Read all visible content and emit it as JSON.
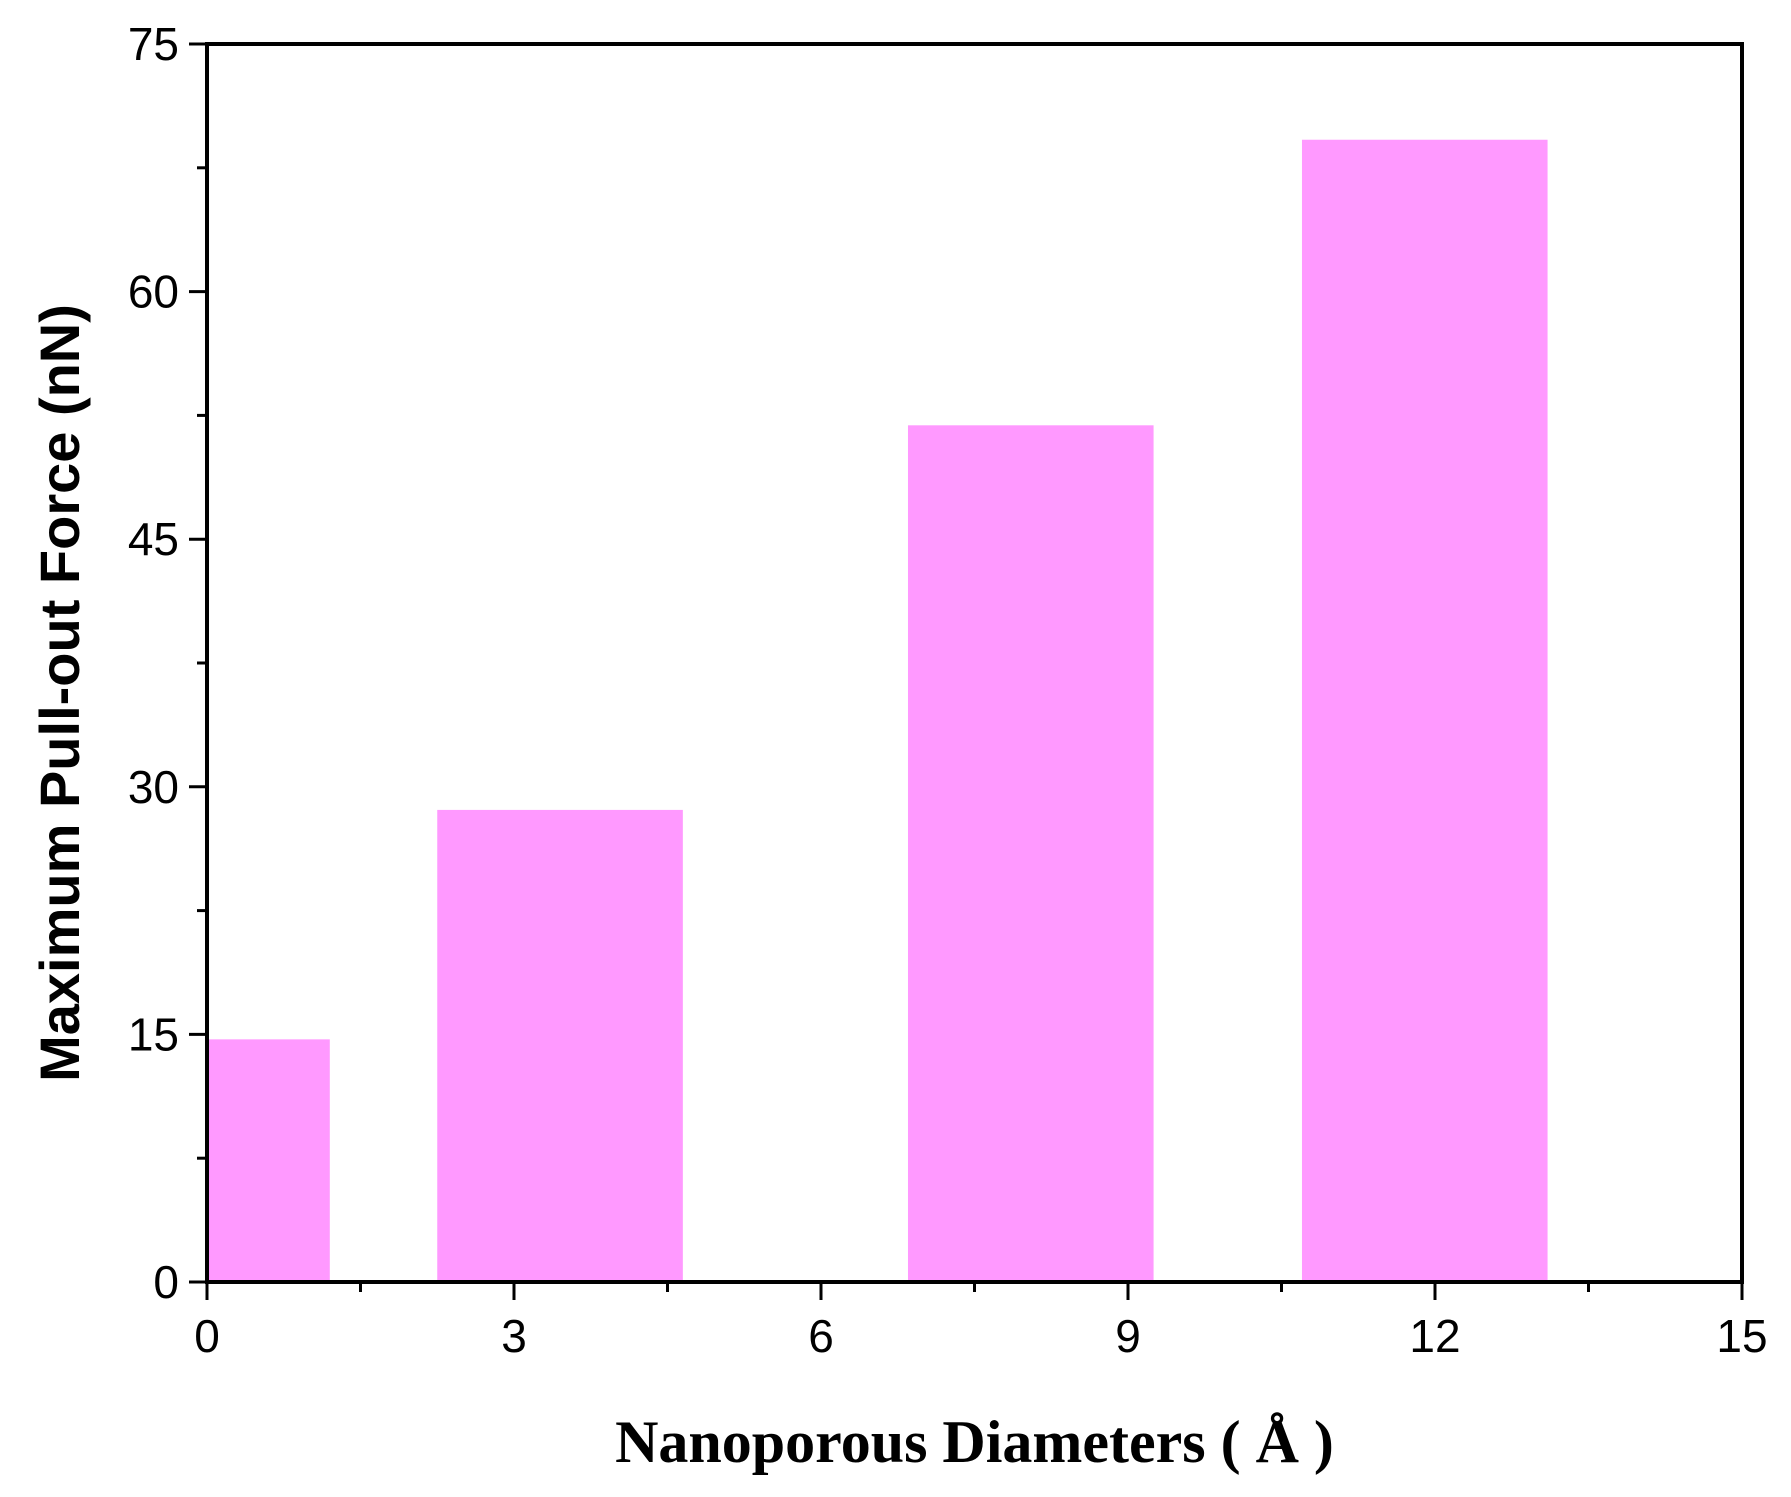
{
  "chart_data": {
    "type": "bar",
    "bars": [
      {
        "x_start": 0,
        "x_end": 1.2,
        "value": 14.7
      },
      {
        "x_start": 2.25,
        "x_end": 4.65,
        "value": 28.6
      },
      {
        "x_start": 6.85,
        "x_end": 9.25,
        "value": 51.9
      },
      {
        "x_start": 10.7,
        "x_end": 13.1,
        "value": 69.2
      }
    ],
    "xlabel": "Nanoporous Diameters ( Å )",
    "ylabel": "Maximum Pull-out  Force (nN)",
    "xlim": [
      0,
      15
    ],
    "ylim": [
      0,
      75
    ],
    "xticks": [
      0,
      3,
      6,
      9,
      12,
      15
    ],
    "yticks": [
      0,
      15,
      30,
      45,
      60,
      75
    ],
    "xticks_minor": [
      1.5,
      4.5,
      7.5,
      10.5,
      13.5
    ],
    "yticks_minor": [
      7.5,
      22.5,
      37.5,
      52.5,
      67.5
    ],
    "bar_color": "#ff99ff",
    "grid": false,
    "legend": "none"
  }
}
